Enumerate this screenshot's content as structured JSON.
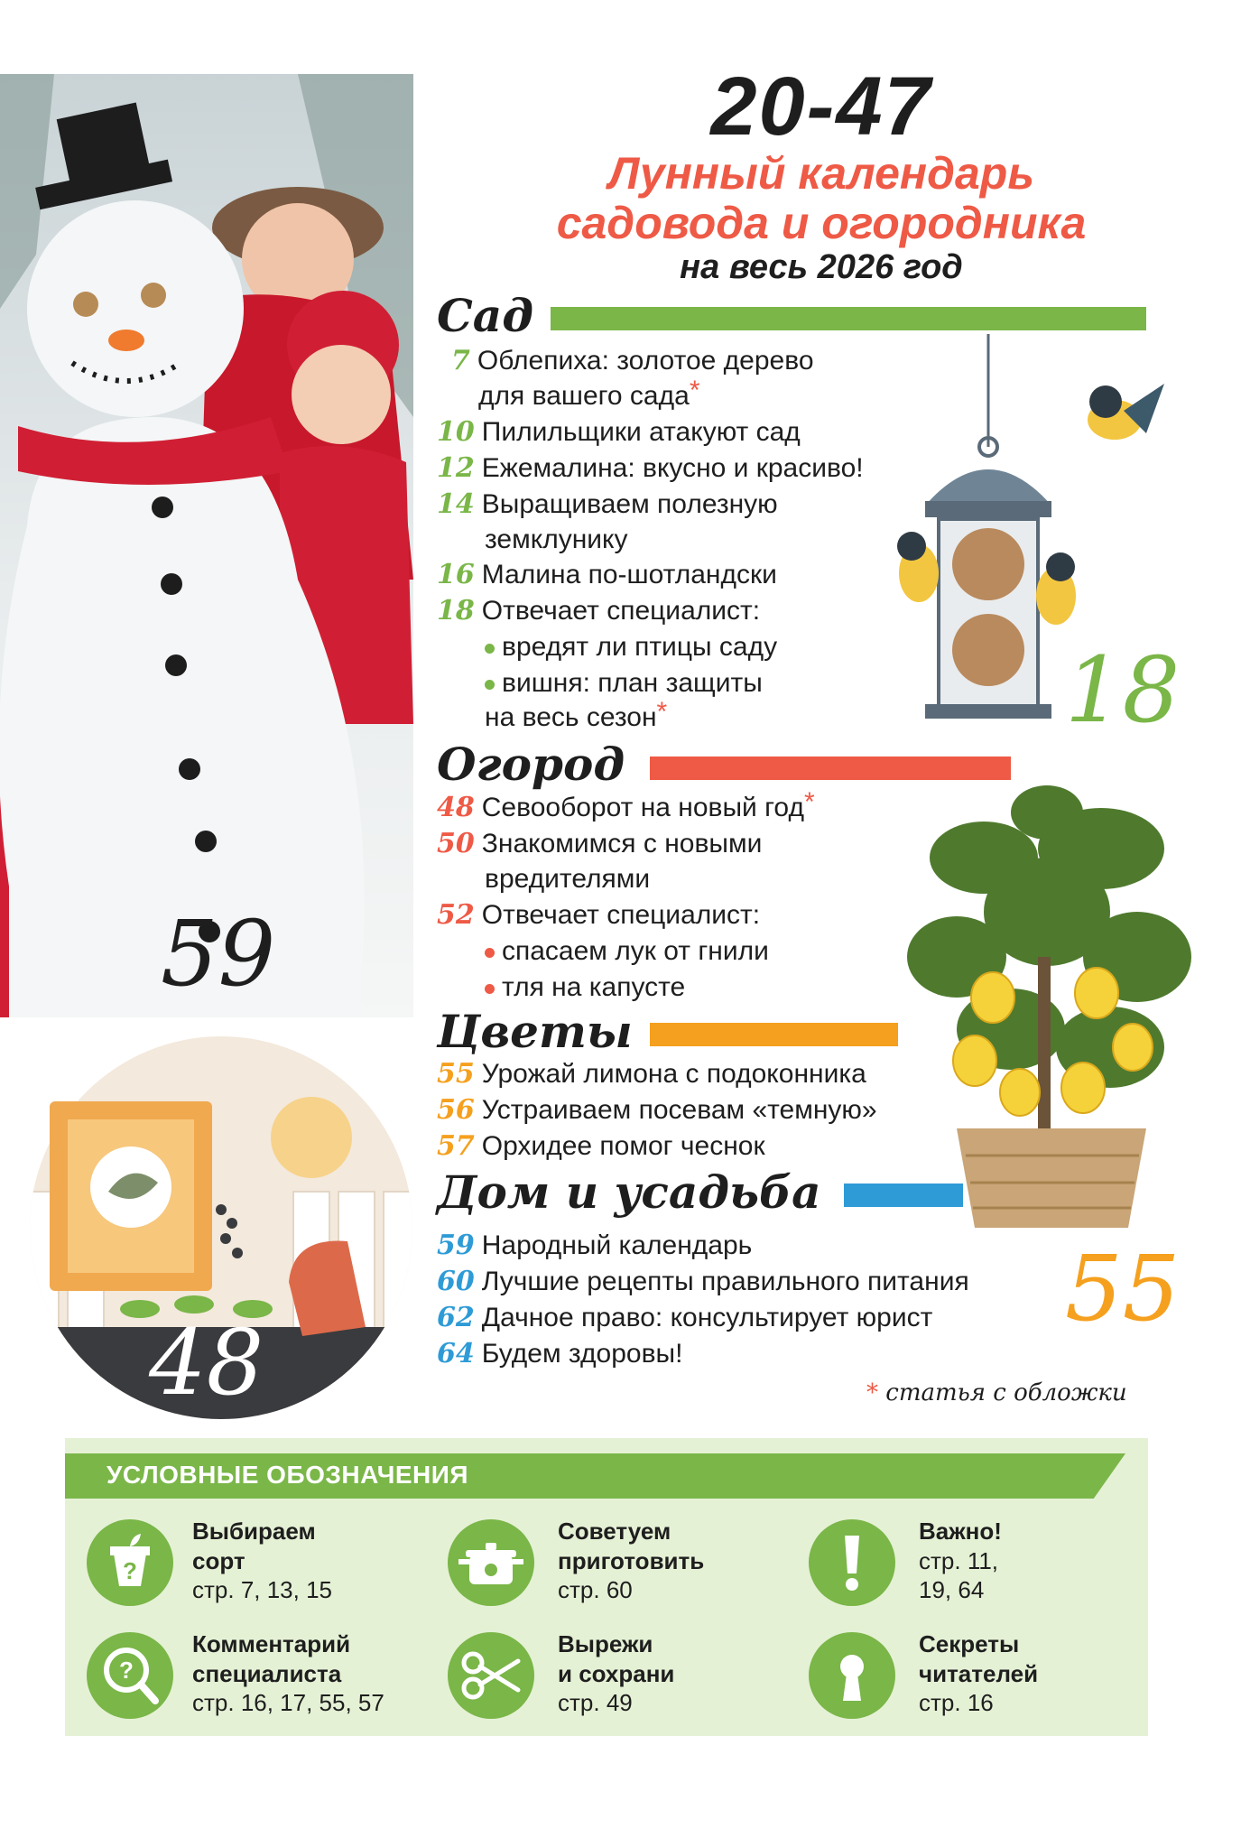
{
  "header": {
    "range": "20-47",
    "title_line1": "Лунный календарь",
    "title_line2": "садовода и огородника",
    "subtitle": "на весь 2026 год"
  },
  "images": {
    "photo_page": "59",
    "feeder_page": "18",
    "lemon_page": "55",
    "seeds_page": "48"
  },
  "sections": [
    {
      "title": "Сад",
      "color": "#7ab648",
      "items": [
        {
          "page": "7",
          "lines": [
            "Облепиха: золотое дерево",
            "для вашего сада"
          ],
          "star": true
        },
        {
          "page": "10",
          "lines": [
            "Пилильщики атакуют сад"
          ]
        },
        {
          "page": "12",
          "lines": [
            "Ежемалина: вкусно и красиво!"
          ]
        },
        {
          "page": "14",
          "lines": [
            "Выращиваем полезную",
            "земклунику"
          ]
        },
        {
          "page": "16",
          "lines": [
            "Малина по-шотландски"
          ]
        },
        {
          "page": "18",
          "lines": [
            "Отвечает специалист:"
          ]
        },
        {
          "bullet": "вредят ли птицы саду"
        },
        {
          "bullet": "вишня: план защиты",
          "cont": "на весь сезон",
          "star": true
        }
      ]
    },
    {
      "title": "Огород",
      "color": "#ee5a46",
      "items": [
        {
          "page": "48",
          "lines": [
            "Севооборот на новый год"
          ],
          "star": true
        },
        {
          "page": "50",
          "lines": [
            "Знакомимся с новыми",
            "вредителями"
          ]
        },
        {
          "page": "52",
          "lines": [
            "Отвечает специалист:"
          ]
        },
        {
          "bullet": "спасаем лук от гнили"
        },
        {
          "bullet": "тля на капусте"
        }
      ]
    },
    {
      "title": "Цветы",
      "color": "#f5a01e",
      "items": [
        {
          "page": "55",
          "lines": [
            "Урожай лимона с подоконника"
          ]
        },
        {
          "page": "56",
          "lines": [
            "Устраиваем посевам «темную»"
          ]
        },
        {
          "page": "57",
          "lines": [
            "Орхидее помог чеснок"
          ]
        }
      ]
    },
    {
      "title": "Дом и усадьба",
      "color": "#2e9bd6",
      "items": [
        {
          "page": "59",
          "lines": [
            "Народный календарь"
          ]
        },
        {
          "page": "60",
          "lines": [
            "Лучшие рецепты правильного питания"
          ]
        },
        {
          "page": "62",
          "lines": [
            "Дачное право: консультирует юрист"
          ]
        },
        {
          "page": "64",
          "lines": [
            "Будем здоровы!"
          ]
        }
      ]
    }
  ],
  "cover_note": {
    "star": "*",
    "text": "статья с обложки"
  },
  "legend": {
    "title": "УСЛОВНЫЕ ОБОЗНАЧЕНИЯ",
    "entries": [
      {
        "icon": "pot-question-icon",
        "bold": [
          "Выбираем",
          "сорт"
        ],
        "text": [
          "стр. 7, 13, 15"
        ]
      },
      {
        "icon": "cooking-pot-icon",
        "bold": [
          "Советуем",
          "приготовить"
        ],
        "text": [
          "стр. 60"
        ]
      },
      {
        "icon": "exclamation-icon",
        "bold": [
          "Важно!"
        ],
        "text": [
          "стр. 11,",
          "19, 64"
        ]
      },
      {
        "icon": "magnifier-question-icon",
        "bold": [
          "Комментарий",
          "специалиста"
        ],
        "text": [
          "стр. 16, 17, 55, 57"
        ]
      },
      {
        "icon": "scissors-icon",
        "bold": [
          "Вырежи",
          "и сохрани"
        ],
        "text": [
          "стр. 49"
        ]
      },
      {
        "icon": "keyhole-icon",
        "bold": [
          "Секреты",
          "читателей"
        ],
        "text": [
          "стр. 16"
        ]
      }
    ]
  }
}
